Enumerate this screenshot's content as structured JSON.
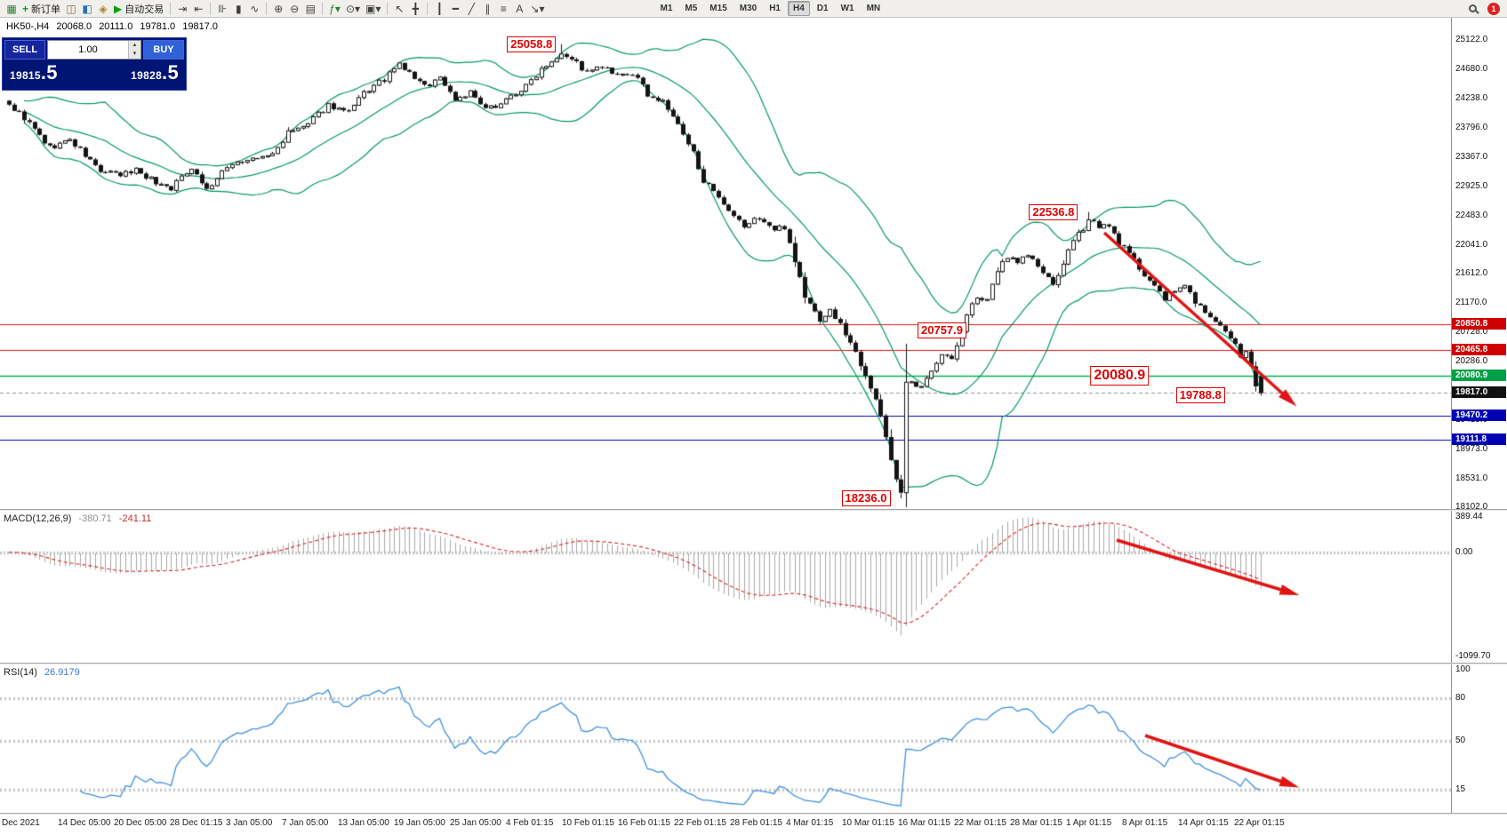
{
  "toolbar": {
    "badge_count": "1",
    "active_timeframe": "H4",
    "timeframes": [
      "M1",
      "M5",
      "M15",
      "M30",
      "H1",
      "H4",
      "D1",
      "W1",
      "MN"
    ],
    "items": [
      {
        "name": "new-chart-icon",
        "glyph": "▦",
        "color": "#2e7d32"
      },
      {
        "name": "new-order-button",
        "glyph": "+",
        "color": "#0a9e0a",
        "label": "新订单"
      },
      {
        "name": "chart-profiles-icon",
        "glyph": "◫",
        "color": "#8a6d3b"
      },
      {
        "name": "market-watch-icon",
        "glyph": "◧",
        "color": "#2a6fb0"
      },
      {
        "name": "navigator-icon",
        "glyph": "◈",
        "color": "#b08030"
      },
      {
        "name": "auto-trading-button",
        "glyph": "▶",
        "color": "#0a9e0a",
        "label": "自动交易"
      },
      {
        "sep": true
      },
      {
        "name": "auto-scroll-icon",
        "glyph": "⇥"
      },
      {
        "name": "chart-shift-icon",
        "glyph": "⇤"
      },
      {
        "sep": true
      },
      {
        "name": "bar-chart-mode-icon",
        "glyph": "⊪"
      },
      {
        "name": "candlestick-mode-icon",
        "glyph": "▮"
      },
      {
        "name": "line-chart-mode-icon",
        "glyph": "∿"
      },
      {
        "sep": true
      },
      {
        "name": "zoom-in-icon",
        "glyph": "⊕"
      },
      {
        "name": "zoom-out-icon",
        "glyph": "⊖"
      },
      {
        "name": "tile-windows-icon",
        "glyph": "▤"
      },
      {
        "sep": true
      },
      {
        "name": "indicators-button",
        "glyph": "ƒ▾",
        "color": "#2e7d32"
      },
      {
        "name": "periods-button",
        "glyph": "⊙▾"
      },
      {
        "name": "templates-button",
        "glyph": "▣▾"
      },
      {
        "sep": true
      },
      {
        "name": "cursor-icon",
        "glyph": "↖"
      },
      {
        "name": "crosshair-icon",
        "glyph": "╋"
      },
      {
        "sep": true
      },
      {
        "name": "vertical-line-icon",
        "glyph": "┃"
      },
      {
        "name": "horizontal-line-icon",
        "glyph": "━"
      },
      {
        "name": "trendline-icon",
        "glyph": "╱"
      },
      {
        "name": "channel-icon",
        "glyph": "∥"
      },
      {
        "name": "fibonacci-icon",
        "glyph": "≡"
      },
      {
        "name": "text-icon",
        "glyph": "A"
      },
      {
        "name": "arrows-icon",
        "glyph": "↘▾"
      }
    ]
  },
  "chart_info": {
    "symbol_period": "HK50-,H4",
    "open": "20068.0",
    "high": "20111.0",
    "low": "19781.0",
    "close": "19817.0"
  },
  "trade_panel": {
    "sell_label": "SELL",
    "buy_label": "BUY",
    "volume": "1.00",
    "sell_price": "19815",
    "sell_price_frac": ".5",
    "buy_price": "19828",
    "buy_price_frac": ".5"
  },
  "colors": {
    "bull": "#ffffff",
    "bear": "#141414",
    "wick": "#141414",
    "band": "#009a60",
    "macd_hist": "#a8a8a8",
    "macd_signal": "#e02020",
    "rsi": "#4090e0",
    "arrow": "#e01414"
  },
  "chart_data": [
    {
      "type": "candlestick",
      "symbol": "HK50-",
      "period": "H4",
      "ohlc_current": {
        "open": 20068.0,
        "high": 20111.0,
        "low": 19781.0,
        "close": 19817.0
      },
      "candle_count": 248,
      "bollinger": {
        "period": 20,
        "deviation": 2
      },
      "y_ticks": [
        "25122.0",
        "24680.0",
        "24238.0",
        "23796.0",
        "23367.0",
        "22925.0",
        "22483.0",
        "22041.0",
        "21612.0",
        "21170.0",
        "20728.0",
        "20286.0",
        "19857.0",
        "19415.0",
        "18973.0",
        "18531.0",
        "18102.0"
      ],
      "x_labels": [
        "Dec 2021",
        "14 Dec 05:00",
        "20 Dec 05:00",
        "28 Dec 01:15",
        "3 Jan 05:00",
        "7 Jan 05:00",
        "13 Jan 05:00",
        "19 Jan 05:00",
        "25 Jan 05:00",
        "4 Feb 01:15",
        "10 Feb 01:15",
        "16 Feb 01:15",
        "22 Feb 01:15",
        "28 Feb 01:15",
        "4 Mar 01:15",
        "10 Mar 01:15",
        "16 Mar 01:15",
        "22 Mar 01:15",
        "28 Mar 01:15",
        "1 Apr 01:15",
        "8 Apr 01:15",
        "14 Apr 01:15",
        "22 Apr 01:15"
      ],
      "close_anchors": [
        [
          0,
          24150
        ],
        [
          3,
          23950
        ],
        [
          8,
          23500
        ],
        [
          12,
          23620
        ],
        [
          18,
          23150
        ],
        [
          22,
          23080
        ],
        [
          25,
          23180
        ],
        [
          29,
          22980
        ],
        [
          32,
          22900
        ],
        [
          36,
          23220
        ],
        [
          39,
          22870
        ],
        [
          44,
          23280
        ],
        [
          48,
          23320
        ],
        [
          52,
          23400
        ],
        [
          55,
          23720
        ],
        [
          59,
          23850
        ],
        [
          63,
          24150
        ],
        [
          67,
          24020
        ],
        [
          70,
          24320
        ],
        [
          74,
          24530
        ],
        [
          77,
          24750
        ],
        [
          79,
          24620
        ],
        [
          82,
          24420
        ],
        [
          85,
          24560
        ],
        [
          88,
          24230
        ],
        [
          91,
          24330
        ],
        [
          94,
          24060
        ],
        [
          98,
          24230
        ],
        [
          102,
          24420
        ],
        [
          105,
          24700
        ],
        [
          109,
          24940
        ],
        [
          111,
          24850
        ],
        [
          114,
          24620
        ],
        [
          117,
          24720
        ],
        [
          120,
          24560
        ],
        [
          123,
          24620
        ],
        [
          126,
          24310
        ],
        [
          129,
          24180
        ],
        [
          131,
          23980
        ],
        [
          133,
          23680
        ],
        [
          135,
          23420
        ],
        [
          137,
          23020
        ],
        [
          140,
          22720
        ],
        [
          142,
          22520
        ],
        [
          145,
          22320
        ],
        [
          148,
          22460
        ],
        [
          151,
          22260
        ],
        [
          153,
          22320
        ],
        [
          155,
          21820
        ],
        [
          157,
          21260
        ],
        [
          160,
          20920
        ],
        [
          162,
          21060
        ],
        [
          165,
          20720
        ],
        [
          167,
          20420
        ],
        [
          169,
          20110
        ],
        [
          171,
          19720
        ],
        [
          173,
          19160
        ],
        [
          175,
          18520
        ],
        [
          176,
          18320
        ],
        [
          177,
          19980
        ],
        [
          180,
          19880
        ],
        [
          182,
          20180
        ],
        [
          184,
          20420
        ],
        [
          186,
          20310
        ],
        [
          187,
          20520
        ],
        [
          189,
          20980
        ],
        [
          191,
          21280
        ],
        [
          193,
          21180
        ],
        [
          195,
          21660
        ],
        [
          197,
          21880
        ],
        [
          199,
          21800
        ],
        [
          201,
          21900
        ],
        [
          203,
          21720
        ],
        [
          204,
          21620
        ],
        [
          206,
          21420
        ],
        [
          208,
          21780
        ],
        [
          210,
          22080
        ],
        [
          212,
          22300
        ],
        [
          213,
          22450
        ],
        [
          215,
          22330
        ],
        [
          217,
          22300
        ],
        [
          219,
          22080
        ],
        [
          221,
          21900
        ],
        [
          223,
          21700
        ],
        [
          225,
          21520
        ],
        [
          227,
          21320
        ],
        [
          228,
          21230
        ],
        [
          230,
          21360
        ],
        [
          232,
          21420
        ],
        [
          234,
          21200
        ],
        [
          236,
          21020
        ],
        [
          238,
          20900
        ],
        [
          240,
          20720
        ],
        [
          242,
          20520
        ],
        [
          243,
          20330
        ],
        [
          244,
          20470
        ],
        [
          245,
          20230
        ],
        [
          246,
          19960
        ],
        [
          247,
          19817
        ]
      ],
      "horizontal_lines": [
        {
          "price": 20850.8,
          "color": "#e01010",
          "style": "solid",
          "width": 1
        },
        {
          "price": 20465.8,
          "color": "#e01010",
          "style": "solid",
          "width": 1
        },
        {
          "price": 20080.9,
          "color": "#00b050",
          "style": "solid",
          "width": 1.4
        },
        {
          "price": 19817.0,
          "color": "#909090",
          "style": "dash",
          "width": 1
        },
        {
          "price": 19470.2,
          "color": "#0000c8",
          "style": "solid",
          "width": 1.2
        },
        {
          "price": 19111.8,
          "color": "#0000c8",
          "style": "solid",
          "width": 1.2
        }
      ],
      "price_tags": [
        {
          "value": "20850.8",
          "color": "#d00000"
        },
        {
          "value": "20465.8",
          "color": "#d00000"
        },
        {
          "value": "20080.9",
          "color": "#00a046"
        },
        {
          "value": "19817.0",
          "color": "#111111"
        },
        {
          "value": "19470.2",
          "color": "#0000b4"
        },
        {
          "value": "19111.8",
          "color": "#0000b4"
        }
      ],
      "annotations": [
        {
          "text": "25058.8",
          "anchor_index": 109,
          "price": 25058.8,
          "size": "normal"
        },
        {
          "text": "22536.8",
          "anchor_index": 212,
          "price": 22536.8,
          "size": "normal"
        },
        {
          "text": "20757.9",
          "anchor_index": 190,
          "price": 20757.9,
          "size": "normal"
        },
        {
          "text": "20080.9",
          "anchor_index": 226,
          "price": 20080.9,
          "size": "large"
        },
        {
          "text": "19788.8",
          "anchor_index": 241,
          "price": 19788.8,
          "size": "normal"
        },
        {
          "text": "18236.0",
          "anchor_index": 175,
          "price": 18236.0,
          "size": "normal"
        }
      ],
      "trend_arrows": [
        {
          "panel": "main",
          "direction": "down-right"
        },
        {
          "panel": "macd",
          "direction": "down-right"
        },
        {
          "panel": "rsi",
          "direction": "down-right"
        }
      ]
    },
    {
      "type": "macd",
      "name": "MACD(12,26,9)",
      "value_main": "-380.71",
      "value_signal": "-241.11",
      "params": {
        "fast": 12,
        "slow": 26,
        "signal": 9
      },
      "axis_ticks": [
        "389.44",
        "0.00",
        "-1099.70"
      ]
    },
    {
      "type": "line",
      "name": "RSI(14)",
      "period": 14,
      "value": "26.9179",
      "axis_ticks": [
        "100",
        "80",
        "50",
        "15"
      ],
      "levels": [
        80,
        50,
        15
      ]
    }
  ]
}
